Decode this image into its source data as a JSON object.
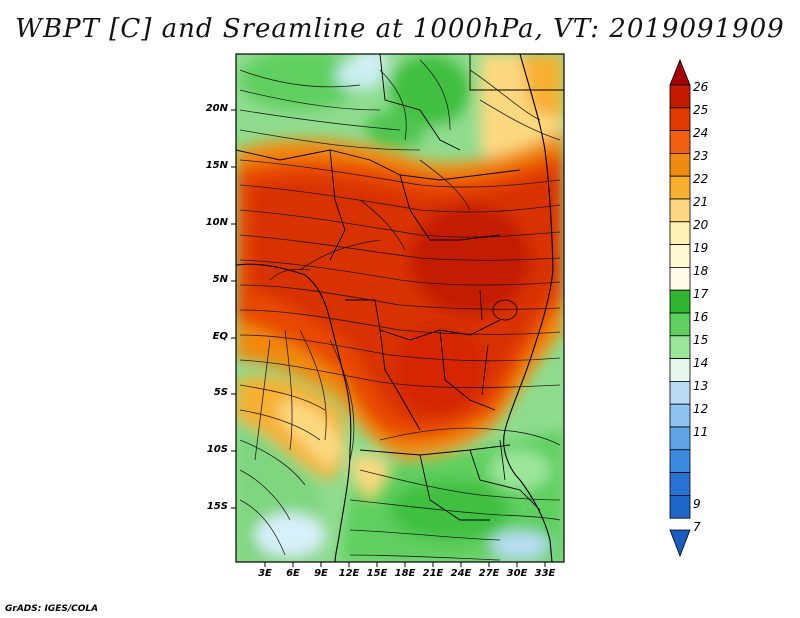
{
  "title": "WBPT [C] and Sreamline at 1000hPa, VT: 2019091909",
  "credit": "GrADS: IGES/COLA",
  "map": {
    "lat_labels": [
      "20N",
      "15N",
      "10N",
      "5N",
      "EQ",
      "5S",
      "10S",
      "15S"
    ],
    "lon_labels": [
      "3E",
      "6E",
      "9E",
      "12E",
      "15E",
      "18E",
      "21E",
      "24E",
      "27E",
      "30E",
      "33E"
    ]
  },
  "colorbar": {
    "labels": [
      "26",
      "25",
      "24",
      "23",
      "22",
      "21",
      "20",
      "19",
      "18",
      "17",
      "16",
      "15",
      "14",
      "13",
      "12",
      "11",
      "9",
      "7"
    ],
    "colors": [
      "#a50000",
      "#c41a00",
      "#e03a00",
      "#f06010",
      "#f08a10",
      "#f7b030",
      "#fcd980",
      "#fff2b0",
      "#2fb52f",
      "#5fcf5f",
      "#9be69b",
      "#e6f8ec",
      "#b9dcf5",
      "#8cc3f0",
      "#5ea5e8",
      "#3d8be0",
      "#2a73d6"
    ]
  },
  "colors": {
    "frame": "#000000",
    "streamline": "#111111"
  }
}
